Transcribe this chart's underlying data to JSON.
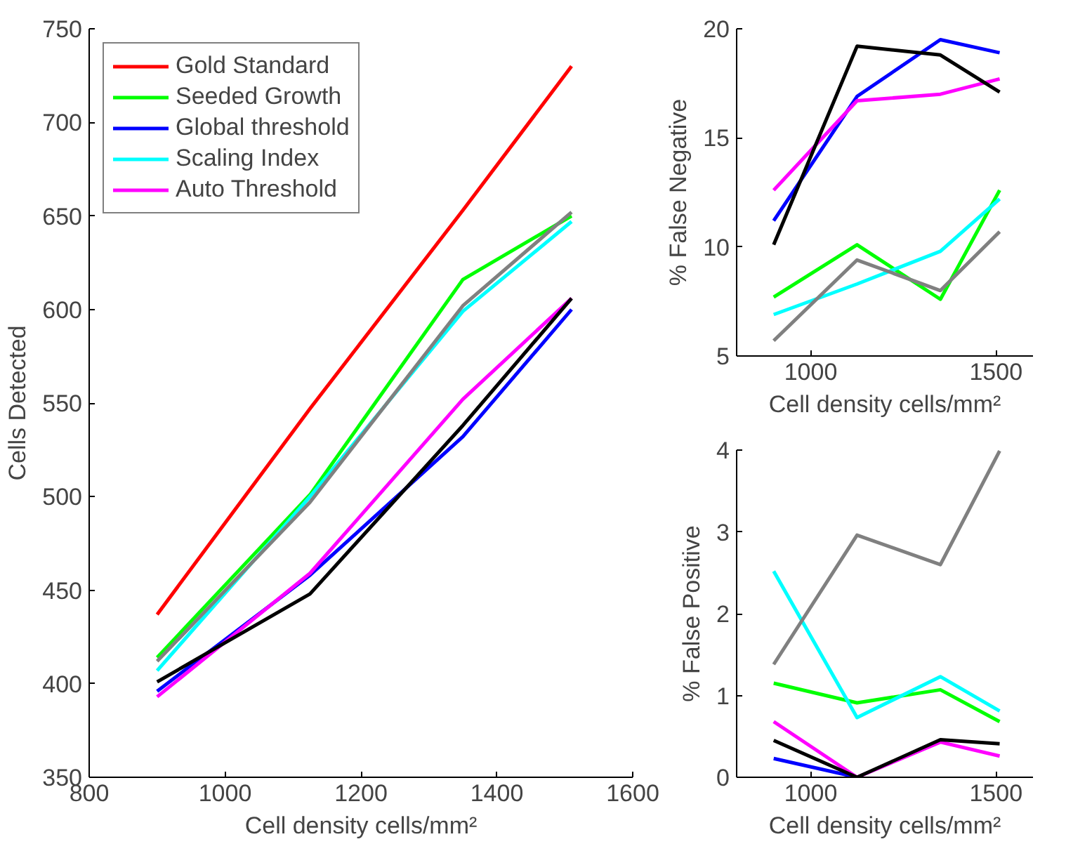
{
  "chart_data": [
    {
      "type": "line",
      "xlabel": "Cell density cells/mm²",
      "ylabel": "Cells Detected",
      "x": [
        900,
        1125,
        1350,
        1510
      ],
      "xlim": [
        800,
        1600
      ],
      "xticks": [
        800,
        1000,
        1200,
        1400,
        1600
      ],
      "ylim": [
        350,
        750
      ],
      "yticks": [
        350,
        400,
        450,
        500,
        550,
        600,
        650,
        700,
        750
      ],
      "grid": false,
      "legend": "top left",
      "series": [
        {
          "name": "Gold Standard",
          "color": "#ff0000",
          "values": [
            437,
            547,
            653,
            730
          ]
        },
        {
          "name": "Seeded Growth",
          "color": "#00ff00",
          "values": [
            414,
            501,
            616,
            650
          ]
        },
        {
          "name": "Global threshold",
          "color": "#0000ff",
          "values": [
            396,
            458,
            532,
            600
          ]
        },
        {
          "name": "Scaling Index",
          "color": "#00ffff",
          "values": [
            407,
            500,
            599,
            647
          ]
        },
        {
          "name": "Auto Threshold",
          "color": "#ff00ff",
          "values": [
            393,
            459,
            552,
            606
          ]
        },
        {
          "color": "#808080",
          "values": [
            412,
            497,
            602,
            652
          ]
        },
        {
          "color": "#000000",
          "values": [
            401,
            448,
            538,
            606
          ]
        }
      ]
    },
    {
      "type": "line",
      "xlabel": "Cell density cells/mm²",
      "ylabel": "% False Negative",
      "x": [
        900,
        1125,
        1350,
        1510
      ],
      "xlim": [
        800,
        1600
      ],
      "xticks": [
        1000,
        1500
      ],
      "ylim": [
        5,
        20
      ],
      "yticks": [
        5,
        10,
        15,
        20
      ],
      "grid": false,
      "series": [
        {
          "color": "#00ff00",
          "values": [
            7.7,
            10.1,
            7.6,
            12.6
          ]
        },
        {
          "color": "#0000ff",
          "values": [
            11.2,
            16.9,
            19.5,
            18.9
          ]
        },
        {
          "color": "#00ffff",
          "values": [
            6.9,
            8.3,
            9.8,
            12.2
          ]
        },
        {
          "color": "#ff00ff",
          "values": [
            12.6,
            16.7,
            17.0,
            17.7
          ]
        },
        {
          "color": "#808080",
          "values": [
            5.7,
            9.4,
            8.0,
            10.7
          ]
        },
        {
          "color": "#000000",
          "values": [
            10.1,
            19.2,
            18.8,
            17.1
          ]
        }
      ]
    },
    {
      "type": "line",
      "xlabel": "Cell density cells/mm²",
      "ylabel": "% False Positive",
      "x": [
        900,
        1125,
        1350,
        1510
      ],
      "xlim": [
        800,
        1600
      ],
      "xticks": [
        1000,
        1500
      ],
      "ylim": [
        0,
        4
      ],
      "yticks": [
        0,
        1,
        2,
        3,
        4
      ],
      "grid": false,
      "series": [
        {
          "color": "#00ff00",
          "values": [
            1.15,
            0.91,
            1.07,
            0.68
          ]
        },
        {
          "color": "#0000ff",
          "values": [
            0.23,
            0,
            null,
            null
          ]
        },
        {
          "color": "#00ffff",
          "values": [
            2.52,
            0.73,
            1.23,
            0.81
          ]
        },
        {
          "color": "#ff00ff",
          "values": [
            0.68,
            0,
            0.43,
            0.26
          ]
        },
        {
          "color": "#808080",
          "values": [
            1.38,
            2.96,
            2.6,
            3.99
          ]
        },
        {
          "color": "#000000",
          "values": [
            0.45,
            0,
            0.46,
            0.41
          ]
        }
      ]
    }
  ]
}
